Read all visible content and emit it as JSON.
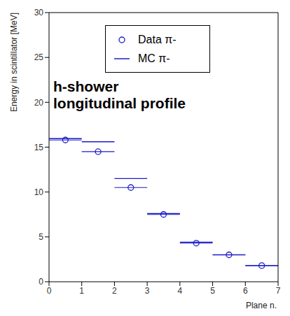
{
  "chart_data": {
    "type": "scatter",
    "annotations": [
      "h-shower",
      "longitudinal profile"
    ],
    "x_label": "Plane n.",
    "y_label": "Energy in scintillator [MeV]",
    "x": [
      0.5,
      1.5,
      2.5,
      3.5,
      4.5,
      5.5,
      6.5
    ],
    "series": [
      {
        "name": "Data π-",
        "color": "#1c1cc8",
        "marker": "circle",
        "values": [
          15.8,
          14.5,
          10.5,
          7.5,
          4.3,
          3.0,
          1.8
        ],
        "x_error": [
          0.5,
          0.5,
          0.5,
          0.5,
          0.5,
          0.5,
          0.5
        ]
      },
      {
        "name": "MC π-",
        "color": "#1c1cc8",
        "marker": "none",
        "line_style": "solid",
        "values": [
          15.95,
          15.6,
          11.5,
          7.6,
          4.4,
          3.0,
          1.8
        ],
        "x_error": [
          0.5,
          0.5,
          0.5,
          0.5,
          0.5,
          0.5,
          0.5
        ]
      }
    ],
    "xlim": [
      0,
      7
    ],
    "xticks": [
      0,
      1,
      2,
      3,
      4,
      5,
      6,
      7
    ],
    "ylim": [
      0,
      30
    ],
    "yticks": [
      0,
      5,
      10,
      15,
      20,
      25,
      30
    ],
    "legend": "upper right",
    "grid": false
  }
}
